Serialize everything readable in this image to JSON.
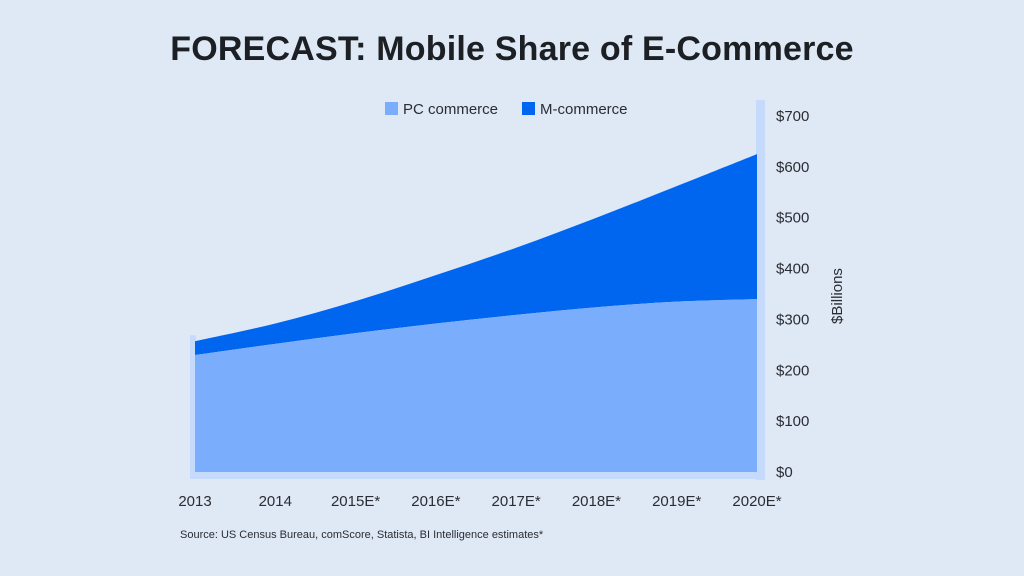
{
  "chart_data": {
    "type": "area",
    "stacked": true,
    "title": "FORECAST: Mobile Share of E-Commerce",
    "ylabel": "$Billions",
    "xlabel": "",
    "categories": [
      "2013",
      "2014",
      "2015E*",
      "2016E*",
      "2017E*",
      "2018E*",
      "2019E*",
      "2020E*"
    ],
    "series": [
      {
        "name": "PC commerce",
        "color": "#7aaefc",
        "values": [
          230,
          252,
          273,
          292,
          309,
          324,
          335,
          340
        ]
      },
      {
        "name": "M-commerce",
        "color": "#0066f0",
        "values": [
          27,
          40,
          63,
          95,
          132,
          176,
          227,
          285
        ]
      }
    ],
    "ylim": [
      0,
      700
    ],
    "yticks": [
      0,
      100,
      200,
      300,
      400,
      500,
      600,
      700
    ],
    "ytick_labels": [
      "$0",
      "$100",
      "$200",
      "$300",
      "$400",
      "$500",
      "$600",
      "$700"
    ],
    "yaxis_position": "right",
    "legend_position": "top-center",
    "grid": false,
    "source": "Source: US Census Bureau, comScore, Statista, BI Intelligence estimates*"
  }
}
